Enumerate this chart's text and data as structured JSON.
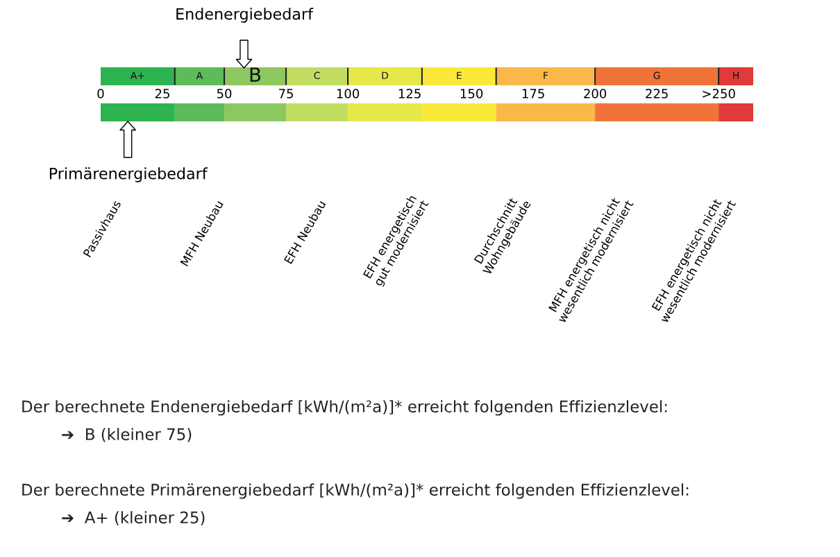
{
  "chart_data": {
    "type": "bar",
    "orientation": "horizontal",
    "stacked": true,
    "categories": [
      null,
      null
    ],
    "xlim": [
      0,
      264
    ],
    "xticks": [
      0,
      25,
      50,
      75,
      100,
      125,
      150,
      175,
      200,
      225,
      {
        "value": 250,
        "label": ">250"
      }
    ],
    "series": [
      {
        "color": "#2db34f",
        "values": [
          30,
          30
        ],
        "value_labels": [
          "A+",
          null
        ]
      },
      {
        "color": "#5dbb5a",
        "values": [
          20,
          20
        ],
        "value_labels": [
          "A",
          null
        ]
      },
      {
        "color": "#8cc860",
        "values": [
          25,
          25
        ],
        "value_labels": [
          "B",
          null
        ]
      },
      {
        "color": "#c3dc62",
        "values": [
          25,
          25
        ],
        "value_labels": [
          "C",
          null
        ]
      },
      {
        "color": "#e6e84a",
        "values": [
          30,
          30
        ],
        "value_labels": [
          "D",
          null
        ]
      },
      {
        "color": "#fbe93a",
        "values": [
          30,
          30
        ],
        "value_labels": [
          "E",
          null
        ]
      },
      {
        "color": "#f9b848",
        "values": [
          40,
          40
        ],
        "value_labels": [
          "F",
          null
        ]
      },
      {
        "color": "#f0743a",
        "values": [
          50,
          50
        ],
        "value_labels": [
          "G",
          null
        ]
      },
      {
        "color": "#e03a3a",
        "values": [
          14,
          14
        ],
        "value_labels": [
          "H",
          null
        ]
      }
    ],
    "ref_lines": [
      {
        "axis": "x",
        "value": 58,
        "label": "Endenergiebedarf"
      },
      {
        "axis": "x",
        "value": 11,
        "label": "Primärenergiebedarf"
      }
    ],
    "annotations": [
      "Passivhaus",
      "MFH Neubau",
      "EFH Neubau",
      "EFH energetisch\ngut modernisiert",
      "Durchschnitt\nWohngebäude",
      "MFH energetisch nicht\nwesentlich modernisiert",
      "EFH energetisch nicht\nwesentlich modernisiert",
      "Der berechnete Endenergiebedarf [kWh/(m²a)]* erreicht folgenden Effizienzlevel:",
      "➔  B (kleiner 75)",
      "Der berechnete Primärenergiebedarf [kWh/(m²a)]* erreicht folgenden Effizienzlevel:",
      "➔  A+ (kleiner 25)"
    ]
  }
}
